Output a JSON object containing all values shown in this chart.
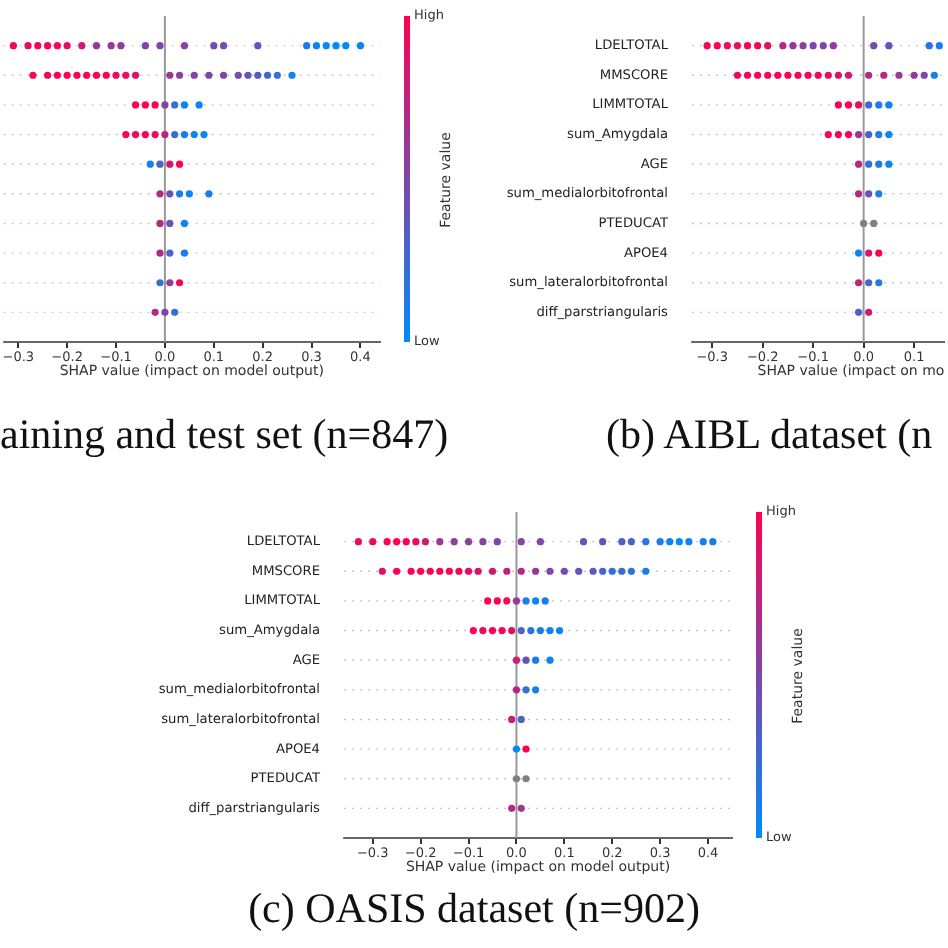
{
  "chart_data": [
    {
      "type": "scatter",
      "orientation": "horizontal",
      "title": "aining and test set (n=847)",
      "xlabel": "SHAP value (impact on model output)",
      "clabel": "Feature value",
      "annotations": [
        "High",
        "Low"
      ],
      "categories": [
        null,
        null,
        null,
        null,
        null,
        null,
        null,
        null,
        null,
        null
      ],
      "tick_labels": "x",
      "xlim": [
        -0.33,
        0.44
      ],
      "xticks": [
        {
          "value": -0.3,
          "label": "−0.3"
        },
        {
          "value": -0.2,
          "label": "−0.2"
        },
        {
          "value": -0.1,
          "label": "−0.1"
        },
        {
          "value": 0,
          "label": "0.0"
        },
        0.1,
        0.2,
        0.3,
        0.4
      ],
      "grid": "y",
      "marker": "circle",
      "ref_lines": [
        {
          "axis": "x",
          "value": 0,
          "color": "#999999"
        }
      ],
      "series": [
        {
          "values": [
            -0.31,
            -0.27,
            -0.06,
            -0.08,
            -0.03,
            -0.01,
            -0.01,
            -0.01,
            -0.01,
            -0.02
          ],
          "colors": [
            "#f2075a",
            "#f2075a",
            "#f2075a",
            "#ff0052",
            "#0d84f2",
            "#b32a85",
            "#b32a85",
            "#b32a85",
            "#336fd9",
            "#b32a85"
          ]
        },
        {
          "values": [
            -0.28,
            -0.24,
            -0.04,
            -0.06,
            -0.01,
            0.01,
            0.01,
            0.01,
            0.01,
            0
          ],
          "colors": [
            "#e60e63",
            "#f2075a",
            "#ff0052",
            "#f2075a",
            "#4d61c8",
            "#6653b7",
            "#6653b7",
            "#4d61c8",
            "#993896",
            "#8046a7"
          ]
        },
        {
          "values": [
            -0.26,
            -0.22,
            -0.02,
            -0.04,
            0.01,
            0.03,
            0.04,
            0.04,
            0.03,
            0.02
          ],
          "colors": [
            "#f2075a",
            "#ff0052",
            "#ff0052",
            "#f2075a",
            "#d9156b",
            "#1a7dea",
            "#0d84f2",
            "#1a7dea",
            "#f2075a",
            "#336fd9"
          ]
        },
        {
          "values": [
            -0.24,
            -0.2,
            0,
            -0.02,
            0.03,
            0.05,
            null,
            null,
            null,
            null
          ],
          "colors": [
            "#ff0052",
            "#ff0052",
            "#8046a7",
            "#e60e63",
            "#ff0052",
            "#0d84f2",
            null,
            null,
            null,
            null
          ]
        },
        {
          "values": [
            -0.22,
            -0.18,
            0.02,
            0,
            null,
            0.09,
            null,
            null,
            null,
            null
          ],
          "colors": [
            "#ff0052",
            "#ff0052",
            "#336fd9",
            "#bf237d",
            null,
            "#1a7dea",
            null,
            null,
            null,
            null
          ]
        },
        {
          "values": [
            -0.2,
            -0.16,
            0.04,
            0.02,
            null,
            null,
            null,
            null,
            null,
            null
          ],
          "colors": [
            "#e60e63",
            "#ff0052",
            "#0d84f2",
            "#336fd9",
            null,
            null,
            null,
            null,
            null,
            null
          ]
        },
        {
          "values": [
            -0.17,
            -0.14,
            0.07,
            0.04,
            null,
            null,
            null,
            null,
            null,
            null
          ],
          "colors": [
            "#cc1c74",
            "#ff0052",
            "#0d84f2",
            "#1a7dea",
            null,
            null,
            null,
            null,
            null,
            null
          ]
        },
        {
          "values": [
            -0.14,
            -0.12,
            null,
            0.06,
            null,
            null,
            null,
            null,
            null,
            null
          ],
          "colors": [
            "#993896",
            "#ff0052",
            null,
            "#0d84f2",
            null,
            null,
            null,
            null,
            null,
            null
          ]
        },
        {
          "values": [
            -0.11,
            -0.1,
            null,
            0.08,
            null,
            null,
            null,
            null,
            null,
            null
          ],
          "colors": [
            "#993896",
            "#f2075a",
            null,
            "#0d84f2",
            null,
            null,
            null,
            null,
            null,
            null
          ]
        },
        {
          "values": [
            -0.09,
            -0.08,
            null,
            null,
            null,
            null,
            null,
            null,
            null,
            null
          ],
          "colors": [
            "#8c3f9e",
            "#e60e63",
            null,
            null,
            null,
            null,
            null,
            null,
            null,
            null
          ]
        },
        {
          "values": [
            -0.04,
            -0.06,
            null,
            null,
            null,
            null,
            null,
            null,
            null,
            null
          ],
          "colors": [
            "#8046a7",
            "#d9156b",
            null,
            null,
            null,
            null,
            null,
            null,
            null,
            null
          ]
        },
        {
          "values": [
            -0.01,
            0.01,
            null,
            null,
            null,
            null,
            null,
            null,
            null,
            null
          ],
          "colors": [
            "#8046a7",
            "#993896",
            null,
            null,
            null,
            null,
            null,
            null,
            null,
            null
          ]
        },
        {
          "values": [
            0.04,
            0.03,
            null,
            null,
            null,
            null,
            null,
            null,
            null,
            null
          ],
          "colors": [
            "#8046a7",
            "#8c3f9e",
            null,
            null,
            null,
            null,
            null,
            null,
            null,
            null
          ]
        },
        {
          "values": [
            0.1,
            0.06,
            null,
            null,
            null,
            null,
            null,
            null,
            null,
            null
          ],
          "colors": [
            "#734caf",
            "#8046a7",
            null,
            null,
            null,
            null,
            null,
            null,
            null,
            null
          ]
        },
        {
          "values": [
            0.12,
            0.09,
            null,
            null,
            null,
            null,
            null,
            null,
            null,
            null
          ],
          "colors": [
            "#734caf",
            "#8046a7",
            null,
            null,
            null,
            null,
            null,
            null,
            null,
            null
          ]
        },
        {
          "values": [
            0.19,
            0.12,
            null,
            null,
            null,
            null,
            null,
            null,
            null,
            null
          ],
          "colors": [
            "#595ac0",
            "#8046a7",
            null,
            null,
            null,
            null,
            null,
            null,
            null,
            null
          ]
        },
        {
          "values": [
            0.29,
            0.15,
            null,
            null,
            null,
            null,
            null,
            null,
            null,
            null
          ],
          "colors": [
            "#1a7dea",
            "#734caf",
            null,
            null,
            null,
            null,
            null,
            null,
            null,
            null
          ]
        },
        {
          "values": [
            0.31,
            0.17,
            null,
            null,
            null,
            null,
            null,
            null,
            null,
            null
          ],
          "colors": [
            "#0d84f2",
            "#6653b7",
            null,
            null,
            null,
            null,
            null,
            null,
            null,
            null
          ]
        },
        {
          "values": [
            0.33,
            0.19,
            null,
            null,
            null,
            null,
            null,
            null,
            null,
            null
          ],
          "colors": [
            "#008bfb",
            "#595ac0",
            null,
            null,
            null,
            null,
            null,
            null,
            null,
            null
          ]
        },
        {
          "values": [
            0.35,
            0.21,
            null,
            null,
            null,
            null,
            null,
            null,
            null,
            null
          ],
          "colors": [
            "#008bfb",
            "#4068d0",
            null,
            null,
            null,
            null,
            null,
            null,
            null,
            null
          ]
        },
        {
          "values": [
            0.37,
            0.23,
            null,
            null,
            null,
            null,
            null,
            null,
            null,
            null
          ],
          "colors": [
            "#008bfb",
            "#336fd9",
            null,
            null,
            null,
            null,
            null,
            null,
            null,
            null
          ]
        },
        {
          "values": [
            0.4,
            0.26,
            null,
            null,
            null,
            null,
            null,
            null,
            null,
            null
          ],
          "colors": [
            "#0d84f2",
            "#1a7dea",
            null,
            null,
            null,
            null,
            null,
            null,
            null,
            null
          ]
        }
      ]
    },
    {
      "type": "scatter",
      "orientation": "horizontal",
      "title": "(b) AIBL dataset (n",
      "xlabel": "SHAP value (impact on mo",
      "categories": [
        "LDELTOTAL",
        "MMSCORE",
        "LIMMTOTAL",
        "sum_Amygdala",
        "AGE",
        "sum_medialorbitofrontal",
        "PTEDUCAT",
        "APOE4",
        "sum_lateralorbitofrontal",
        "diff_parstriangularis"
      ],
      "xlim": [
        -0.34,
        0.16
      ],
      "xticks": [
        {
          "value": -0.3,
          "label": "−0.3"
        },
        {
          "value": -0.2,
          "label": "−0.2"
        },
        {
          "value": -0.1,
          "label": "−0.1"
        },
        {
          "value": 0,
          "label": "0.0"
        },
        0.1
      ],
      "grid": "y",
      "marker": "circle",
      "ref_lines": [
        {
          "axis": "x",
          "value": 0,
          "color": "#999999"
        }
      ],
      "series": [
        {
          "values": [
            -0.31,
            -0.25,
            -0.05,
            -0.07,
            -0.01,
            -0.01,
            0,
            -0.01,
            -0.01,
            -0.01
          ],
          "colors": [
            "#f2075a",
            "#f2075a",
            "#f2075a",
            "#ff0052",
            "#b32a85",
            "#b32a85",
            "#808080",
            "#0d84f2",
            "#bf237d",
            "#4d61c8"
          ]
        },
        {
          "values": [
            -0.29,
            -0.23,
            -0.03,
            -0.05,
            0.01,
            0.01,
            0.02,
            0.01,
            0.01,
            0.01
          ],
          "colors": [
            "#ff0052",
            "#ff0052",
            "#ff0052",
            "#f2075a",
            "#336fd9",
            "#6653b7",
            "#808080",
            "#d9156b",
            "#4d61c8",
            "#cc1c74"
          ]
        },
        {
          "values": [
            -0.27,
            -0.21,
            -0.01,
            -0.03,
            0.03,
            0.03,
            null,
            0.03,
            0.03,
            null
          ],
          "colors": [
            "#f2075a",
            "#ff0052",
            "#e60e63",
            "#ff0052",
            "#1a7dea",
            "#1a7dea",
            null,
            "#ff0052",
            "#1a7dea",
            null
          ]
        },
        {
          "values": [
            -0.25,
            -0.19,
            0.01,
            -0.01,
            0.05,
            null,
            null,
            null,
            null,
            null
          ],
          "colors": [
            "#e60e63",
            "#f2075a",
            "#4068d0",
            "#993896",
            "#0d84f2",
            null,
            null,
            null,
            null,
            null
          ]
        },
        {
          "values": [
            -0.23,
            -0.17,
            0.03,
            0.01,
            null,
            null,
            null,
            null,
            null,
            null
          ],
          "colors": [
            "#ff0052",
            "#ff0052",
            "#1a7dea",
            "#4d61c8",
            null,
            null,
            null,
            null,
            null,
            null
          ]
        },
        {
          "values": [
            -0.21,
            -0.15,
            0.05,
            0.03,
            null,
            null,
            null,
            null,
            null,
            null
          ],
          "colors": [
            "#ff0052",
            "#ff0052",
            "#0d84f2",
            "#1a7dea",
            null,
            null,
            null,
            null,
            null,
            null
          ]
        },
        {
          "values": [
            -0.19,
            -0.13,
            null,
            0.05,
            null,
            null,
            null,
            null,
            null,
            null
          ],
          "colors": [
            "#e60e63",
            "#ff0052",
            null,
            "#0d84f2",
            null,
            null,
            null,
            null,
            null,
            null
          ]
        },
        {
          "values": [
            -0.16,
            -0.11,
            null,
            null,
            null,
            null,
            null,
            null,
            null,
            null
          ],
          "colors": [
            "#b32a85",
            "#ff0052",
            null,
            null,
            null,
            null,
            null,
            null,
            null,
            null
          ]
        },
        {
          "values": [
            -0.14,
            -0.09,
            null,
            null,
            null,
            null,
            null,
            null,
            null,
            null
          ],
          "colors": [
            "#993896",
            "#f2075a",
            null,
            null,
            null,
            null,
            null,
            null,
            null,
            null
          ]
        },
        {
          "values": [
            -0.12,
            -0.07,
            null,
            null,
            null,
            null,
            null,
            null,
            null,
            null
          ],
          "colors": [
            "#8c3f9e",
            "#e60e63",
            null,
            null,
            null,
            null,
            null,
            null,
            null,
            null
          ]
        },
        {
          "values": [
            -0.1,
            -0.05,
            null,
            null,
            null,
            null,
            null,
            null,
            null,
            null
          ],
          "colors": [
            "#8046a7",
            "#d9156b",
            null,
            null,
            null,
            null,
            null,
            null,
            null,
            null
          ]
        },
        {
          "values": [
            -0.08,
            -0.03,
            null,
            null,
            null,
            null,
            null,
            null,
            null,
            null
          ],
          "colors": [
            "#8046a7",
            "#cc1c74",
            null,
            null,
            null,
            null,
            null,
            null,
            null,
            null
          ]
        },
        {
          "values": [
            -0.06,
            0.01,
            null,
            null,
            null,
            null,
            null,
            null,
            null,
            null
          ],
          "colors": [
            "#8c3f9e",
            "#b32a85",
            null,
            null,
            null,
            null,
            null,
            null,
            null,
            null
          ]
        },
        {
          "values": [
            0.02,
            0.04,
            null,
            null,
            null,
            null,
            null,
            null,
            null,
            null
          ],
          "colors": [
            "#734caf",
            "#b32a85",
            null,
            null,
            null,
            null,
            null,
            null,
            null,
            null
          ]
        },
        {
          "values": [
            0.05,
            0.07,
            null,
            null,
            null,
            null,
            null,
            null,
            null,
            null
          ],
          "colors": [
            "#6653b7",
            "#993896",
            null,
            null,
            null,
            null,
            null,
            null,
            null,
            null
          ]
        },
        {
          "values": [
            0.13,
            0.1,
            null,
            null,
            null,
            null,
            null,
            null,
            null,
            null
          ],
          "colors": [
            "#2676e2",
            "#993896",
            null,
            null,
            null,
            null,
            null,
            null,
            null,
            null
          ]
        },
        {
          "values": [
            0.15,
            0.12,
            null,
            null,
            null,
            null,
            null,
            null,
            null,
            null
          ],
          "colors": [
            "#1a7dea",
            "#8046a7",
            null,
            null,
            null,
            null,
            null,
            null,
            null,
            null
          ]
        },
        {
          "values": [
            null,
            0.14,
            null,
            null,
            null,
            null,
            null,
            null,
            null,
            null
          ],
          "colors": [
            null,
            "#1a7dea",
            null,
            null,
            null,
            null,
            null,
            null,
            null,
            null
          ]
        }
      ]
    },
    {
      "type": "scatter",
      "orientation": "horizontal",
      "title": "(c) OASIS dataset (n=902)",
      "xlabel": "SHAP value (impact on model output)",
      "clabel": "Feature value",
      "annotations": [
        "High",
        "Low"
      ],
      "categories": [
        "LDELTOTAL",
        "MMSCORE",
        "LIMMTOTAL",
        "sum_Amygdala",
        "AGE",
        "sum_medialorbitofrontal",
        "sum_lateralorbitofrontal",
        "APOE4",
        "PTEDUCAT",
        "diff_parstriangularis"
      ],
      "xlim": [
        -0.36,
        0.45
      ],
      "xticks": [
        {
          "value": -0.3,
          "label": "−0.3"
        },
        {
          "value": -0.2,
          "label": "−0.2"
        },
        {
          "value": -0.1,
          "label": "−0.1"
        },
        {
          "value": 0,
          "label": "0.0"
        },
        0.1,
        0.2,
        0.3,
        0.4
      ],
      "grid": "y",
      "marker": "circle",
      "ref_lines": [
        {
          "axis": "x",
          "value": 0,
          "color": "#999999"
        }
      ],
      "series": [
        {
          "values": [
            -0.33,
            -0.28,
            -0.06,
            -0.09,
            0,
            0,
            -0.01,
            0,
            0,
            -0.01
          ],
          "colors": [
            "#f2075a",
            "#e60e63",
            "#f2075a",
            "#ff0052",
            "#cc1c74",
            "#bf237d",
            "#cc1c74",
            "#0d84f2",
            "#808080",
            "#b32a85"
          ]
        },
        {
          "values": [
            -0.3,
            -0.25,
            -0.04,
            -0.07,
            0.02,
            0.02,
            0.01,
            0.02,
            0.02,
            0.01
          ],
          "colors": [
            "#e60e63",
            "#f2075a",
            "#ff0052",
            "#f2075a",
            "#6653b7",
            "#336fd9",
            "#4d61c8",
            "#ff0052",
            "#808080",
            "#993896"
          ]
        },
        {
          "values": [
            -0.27,
            -0.22,
            -0.02,
            -0.05,
            0.04,
            0.04,
            null,
            null,
            null,
            null
          ],
          "colors": [
            "#f2075a",
            "#ff0052",
            "#ff0052",
            "#ff0052",
            "#1a7dea",
            "#1a7dea",
            null,
            null,
            null,
            null
          ]
        },
        {
          "values": [
            -0.25,
            -0.2,
            0,
            -0.03,
            0.07,
            null,
            null,
            null,
            null,
            null
          ],
          "colors": [
            "#ff0052",
            "#ff0052",
            "#993896",
            "#ff0052",
            "#0d84f2",
            null,
            null,
            null,
            null,
            null
          ]
        },
        {
          "values": [
            -0.23,
            -0.18,
            0.02,
            -0.01,
            null,
            null,
            null,
            null,
            null,
            null
          ],
          "colors": [
            "#ff0052",
            "#ff0052",
            "#1a7dea",
            "#e60e63",
            null,
            null,
            null,
            null,
            null,
            null
          ]
        },
        {
          "values": [
            -0.21,
            -0.16,
            0.04,
            0.01,
            null,
            null,
            null,
            null,
            null,
            null
          ],
          "colors": [
            "#f2075a",
            "#ff0052",
            "#0d84f2",
            "#4d61c8",
            null,
            null,
            null,
            null,
            null,
            null
          ]
        },
        {
          "values": [
            -0.19,
            -0.14,
            0.06,
            0.03,
            null,
            null,
            null,
            null,
            null,
            null
          ],
          "colors": [
            "#cc1c74",
            "#ff0052",
            "#1a7dea",
            "#2676e2",
            null,
            null,
            null,
            null,
            null,
            null
          ]
        },
        {
          "values": [
            -0.16,
            -0.12,
            null,
            0.05,
            null,
            null,
            null,
            null,
            null,
            null
          ],
          "colors": [
            "#993896",
            "#f2075a",
            null,
            "#1a7dea",
            null,
            null,
            null,
            null,
            null,
            null
          ]
        },
        {
          "values": [
            -0.13,
            -0.1,
            null,
            0.07,
            null,
            null,
            null,
            null,
            null,
            null
          ],
          "colors": [
            "#8c3f9e",
            "#e60e63",
            null,
            "#0d84f2",
            null,
            null,
            null,
            null,
            null,
            null
          ]
        },
        {
          "values": [
            -0.1,
            -0.08,
            null,
            0.09,
            null,
            null,
            null,
            null,
            null,
            null
          ],
          "colors": [
            "#8c3f9e",
            "#d9156b",
            null,
            "#0d84f2",
            null,
            null,
            null,
            null,
            null,
            null
          ]
        },
        {
          "values": [
            -0.07,
            -0.05,
            null,
            null,
            null,
            null,
            null,
            null,
            null,
            null
          ],
          "colors": [
            "#8046a7",
            "#cc1c74",
            null,
            null,
            null,
            null,
            null,
            null,
            null,
            null
          ]
        },
        {
          "values": [
            -0.04,
            -0.02,
            null,
            null,
            null,
            null,
            null,
            null,
            null,
            null
          ],
          "colors": [
            "#8046a7",
            "#bf237d",
            null,
            null,
            null,
            null,
            null,
            null,
            null,
            null
          ]
        },
        {
          "values": [
            0.01,
            0.01,
            null,
            null,
            null,
            null,
            null,
            null,
            null,
            null
          ],
          "colors": [
            "#8046a7",
            "#b32a85",
            null,
            null,
            null,
            null,
            null,
            null,
            null,
            null
          ]
        },
        {
          "values": [
            0.05,
            0.04,
            null,
            null,
            null,
            null,
            null,
            null,
            null,
            null
          ],
          "colors": [
            "#8046a7",
            "#993896",
            null,
            null,
            null,
            null,
            null,
            null,
            null,
            null
          ]
        },
        {
          "values": [
            0.14,
            0.07,
            null,
            null,
            null,
            null,
            null,
            null,
            null,
            null
          ],
          "colors": [
            "#6653b7",
            "#8046a7",
            null,
            null,
            null,
            null,
            null,
            null,
            null,
            null
          ]
        },
        {
          "values": [
            0.18,
            0.1,
            null,
            null,
            null,
            null,
            null,
            null,
            null,
            null
          ],
          "colors": [
            "#6653b7",
            "#734caf",
            null,
            null,
            null,
            null,
            null,
            null,
            null,
            null
          ]
        },
        {
          "values": [
            0.22,
            0.13,
            null,
            null,
            null,
            null,
            null,
            null,
            null,
            null
          ],
          "colors": [
            "#4d61c8",
            "#6653b7",
            null,
            null,
            null,
            null,
            null,
            null,
            null,
            null
          ]
        },
        {
          "values": [
            0.24,
            0.16,
            null,
            null,
            null,
            null,
            null,
            null,
            null,
            null
          ],
          "colors": [
            "#4d61c8",
            "#595ac0",
            null,
            null,
            null,
            null,
            null,
            null,
            null,
            null
          ]
        },
        {
          "values": [
            0.27,
            0.18,
            null,
            null,
            null,
            null,
            null,
            null,
            null,
            null
          ],
          "colors": [
            "#2676e2",
            "#4068d0",
            null,
            null,
            null,
            null,
            null,
            null,
            null,
            null
          ]
        },
        {
          "values": [
            0.3,
            0.2,
            null,
            null,
            null,
            null,
            null,
            null,
            null,
            null
          ],
          "colors": [
            "#1a7dea",
            "#336fd9",
            null,
            null,
            null,
            null,
            null,
            null,
            null,
            null
          ]
        },
        {
          "values": [
            0.32,
            0.22,
            null,
            null,
            null,
            null,
            null,
            null,
            null,
            null
          ],
          "colors": [
            "#0d84f2",
            "#4068d0",
            null,
            null,
            null,
            null,
            null,
            null,
            null,
            null
          ]
        },
        {
          "values": [
            0.34,
            0.24,
            null,
            null,
            null,
            null,
            null,
            null,
            null,
            null
          ],
          "colors": [
            "#008bfb",
            "#2676e2",
            null,
            null,
            null,
            null,
            null,
            null,
            null,
            null
          ]
        },
        {
          "values": [
            0.36,
            0.27,
            null,
            null,
            null,
            null,
            null,
            null,
            null,
            null
          ],
          "colors": [
            "#0d84f2",
            "#1a7dea",
            null,
            null,
            null,
            null,
            null,
            null,
            null,
            null
          ]
        },
        {
          "values": [
            0.39,
            null,
            null,
            null,
            null,
            null,
            null,
            null,
            null,
            null
          ],
          "colors": [
            "#1a7dea",
            null,
            null,
            null,
            null,
            null,
            null,
            null,
            null,
            null
          ]
        },
        {
          "values": [
            0.41,
            null,
            null,
            null,
            null,
            null,
            null,
            null,
            null,
            null
          ],
          "colors": [
            "#1a7dea",
            null,
            null,
            null,
            null,
            null,
            null,
            null,
            null,
            null
          ]
        }
      ]
    }
  ]
}
